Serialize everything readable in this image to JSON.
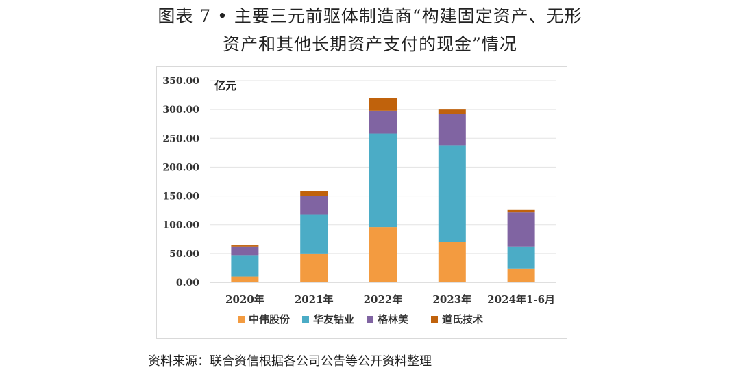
{
  "title_line1": "图表 7 • 主要三元前驱体制造商“构建固定资产、无形",
  "title_line2": "资产和其他长期资产支付的现金”情况",
  "source": "资料来源：联合资信根据各公司公告等公开资料整理",
  "chart_data": {
    "type": "bar",
    "stacked": true,
    "title": "图表 7 • 主要三元前驱体制造商“构建固定资产、无形资产和其他长期资产支付的现金”情况",
    "ylabel": "亿元",
    "xlabel": "",
    "ylim": [
      0,
      350
    ],
    "yticks": [
      "0.00",
      "50.00",
      "100.00",
      "150.00",
      "200.00",
      "250.00",
      "300.00",
      "350.00"
    ],
    "grid": true,
    "legend_position": "bottom",
    "categories": [
      "2020年",
      "2021年",
      "2022年",
      "2023年",
      "2024年1-6月"
    ],
    "series": [
      {
        "name": "中伟股份",
        "color": "#f39b40",
        "values": [
          10,
          50,
          96,
          70,
          24
        ]
      },
      {
        "name": "华友钴业",
        "color": "#4bacc6",
        "values": [
          37,
          68,
          162,
          168,
          38
        ]
      },
      {
        "name": "格林美",
        "color": "#8064a2",
        "values": [
          15,
          32,
          40,
          54,
          60
        ]
      },
      {
        "name": "道氏技术",
        "color": "#c0620c",
        "values": [
          2,
          8,
          22,
          8,
          4
        ]
      }
    ]
  }
}
